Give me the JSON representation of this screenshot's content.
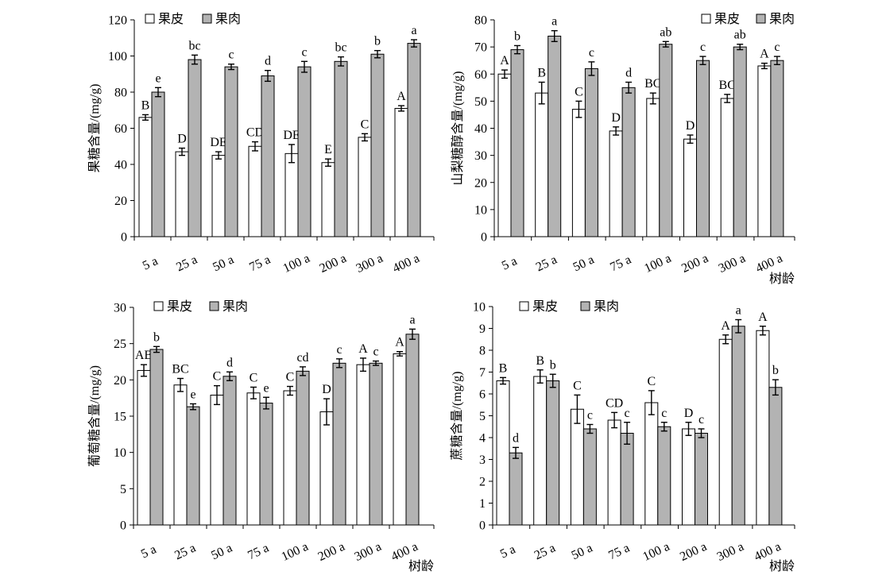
{
  "chart_data": [
    {
      "type": "bar",
      "ylabel": "果糖含量/(mg/g)",
      "xlabel": "",
      "xaxis_label": "",
      "categories": [
        "5 a",
        "25 a",
        "50 a",
        "75 a",
        "100 a",
        "200 a",
        "300 a",
        "400 a"
      ],
      "ylim": [
        0,
        120
      ],
      "ytick_step": 20,
      "legend_position": "top",
      "series": [
        {
          "name": "果皮",
          "values": [
            66,
            47,
            45,
            50,
            46,
            41,
            55,
            71
          ],
          "errors": [
            1.5,
            2,
            2,
            2.5,
            5,
            2,
            2,
            1.5
          ],
          "letters": [
            "B",
            "D",
            "DE",
            "CD",
            "DE",
            "E",
            "C",
            "A"
          ],
          "color": "#ffffff"
        },
        {
          "name": "果肉",
          "values": [
            80,
            98,
            94,
            89,
            94,
            97,
            101,
            107
          ],
          "errors": [
            2.5,
            2.5,
            1.5,
            3,
            3,
            2.5,
            2,
            2
          ],
          "letters": [
            "e",
            "bc",
            "c",
            "d",
            "c",
            "bc",
            "b",
            "a"
          ],
          "color": "#b3b3b3"
        }
      ]
    },
    {
      "type": "bar",
      "ylabel": "山梨糖醇含量/(mg/g)",
      "xlabel": "树龄",
      "categories": [
        "5 a",
        "25 a",
        "50 a",
        "75 a",
        "100 a",
        "200 a",
        "300 a",
        "400 a"
      ],
      "ylim": [
        0,
        80
      ],
      "ytick_step": 10,
      "legend_position": "top-right",
      "series": [
        {
          "name": "果皮",
          "values": [
            60,
            53,
            47,
            39,
            51,
            36,
            51,
            63
          ],
          "errors": [
            1.5,
            4,
            3,
            1.5,
            2,
            1.5,
            1.5,
            1
          ],
          "letters": [
            "A",
            "B",
            "C",
            "D",
            "BC",
            "D",
            "BC",
            "A"
          ],
          "color": "#ffffff"
        },
        {
          "name": "果肉",
          "values": [
            69,
            74,
            62,
            55,
            71,
            65,
            70,
            65
          ],
          "errors": [
            1.5,
            2,
            2.5,
            2,
            1,
            1.5,
            1,
            1.5
          ],
          "letters": [
            "b",
            "a",
            "c",
            "d",
            "ab",
            "c",
            "ab",
            "c"
          ],
          "color": "#b3b3b3"
        }
      ]
    },
    {
      "type": "bar",
      "ylabel": "葡萄糖含量/(mg/g)",
      "xlabel": "树龄",
      "categories": [
        "5 a",
        "25 a",
        "50 a",
        "75 a",
        "100 a",
        "200 a",
        "300 a",
        "400 a"
      ],
      "ylim": [
        0,
        30
      ],
      "ytick_step": 5,
      "legend_position": "top",
      "series": [
        {
          "name": "果皮",
          "values": [
            21.3,
            19.3,
            17.9,
            18.2,
            18.5,
            15.6,
            22.1,
            23.6
          ],
          "errors": [
            0.8,
            0.9,
            1.3,
            0.8,
            0.6,
            1.8,
            0.9,
            0.3
          ],
          "letters": [
            "AB",
            "BC",
            "C",
            "C",
            "C",
            "D",
            "A",
            "A"
          ],
          "color": "#ffffff"
        },
        {
          "name": "果肉",
          "values": [
            24.2,
            16.3,
            20.5,
            16.8,
            21.2,
            22.3,
            22.3,
            26.3
          ],
          "errors": [
            0.4,
            0.4,
            0.6,
            0.8,
            0.6,
            0.6,
            0.3,
            0.7
          ],
          "letters": [
            "b",
            "e",
            "d",
            "e",
            "cd",
            "c",
            "c",
            "a"
          ],
          "color": "#b3b3b3"
        }
      ]
    },
    {
      "type": "bar",
      "ylabel": "蔗糖含量/(mg/g)",
      "xlabel": "树龄",
      "categories": [
        "5 a",
        "25 a",
        "50 a",
        "75 a",
        "100 a",
        "200 a",
        "300 a",
        "400 a"
      ],
      "ylim": [
        0,
        10
      ],
      "ytick_step": 1,
      "legend_position": "top",
      "series": [
        {
          "name": "果皮",
          "values": [
            6.6,
            6.8,
            5.3,
            4.8,
            5.6,
            4.4,
            8.5,
            8.9
          ],
          "errors": [
            0.15,
            0.3,
            0.65,
            0.35,
            0.55,
            0.3,
            0.2,
            0.2
          ],
          "letters": [
            "B",
            "B",
            "C",
            "CD",
            "C",
            "D",
            "A",
            "A"
          ],
          "color": "#ffffff"
        },
        {
          "name": "果肉",
          "values": [
            3.3,
            6.6,
            4.4,
            4.2,
            4.5,
            4.2,
            9.1,
            6.3
          ],
          "errors": [
            0.25,
            0.3,
            0.2,
            0.5,
            0.2,
            0.2,
            0.3,
            0.35
          ],
          "letters": [
            "d",
            "b",
            "c",
            "c",
            "c",
            "c",
            "a",
            "b"
          ],
          "color": "#b3b3b3"
        }
      ]
    }
  ]
}
